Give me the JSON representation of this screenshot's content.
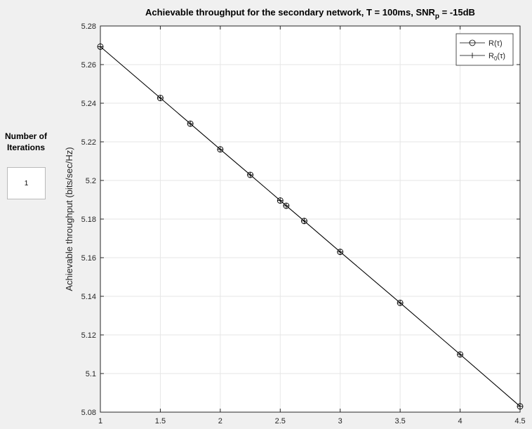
{
  "panel": {
    "label_line1": "Number of",
    "label_line2": "Iterations",
    "value": "1"
  },
  "chart_data": {
    "type": "line",
    "title": "Achievable throughput for the secondary network, T = 100ms, SNR",
    "title_sub": "p",
    "title_suffix": " = -15dB",
    "xlabel": "",
    "ylabel": "Achievable throughput (bits/sec/Hz)",
    "xlim": [
      1,
      4.5
    ],
    "ylim": [
      5.08,
      5.28
    ],
    "xticks": [
      1,
      1.5,
      2,
      2.5,
      3,
      3.5,
      4,
      4.5
    ],
    "xtick_labels": [
      "1",
      "1.5",
      "2",
      "2.5",
      "3",
      "3.5",
      "4",
      "4.5"
    ],
    "yticks": [
      5.08,
      5.1,
      5.12,
      5.14,
      5.16,
      5.18,
      5.2,
      5.22,
      5.24,
      5.26,
      5.28
    ],
    "ytick_labels": [
      "5.08",
      "5.1",
      "5.12",
      "5.14",
      "5.16",
      "5.18",
      "5.2",
      "5.22",
      "5.24",
      "5.26",
      "5.28"
    ],
    "grid": true,
    "legend_position": "top-right",
    "x": [
      1,
      1.5,
      1.75,
      2,
      2.25,
      2.5,
      2.55,
      2.7,
      3,
      3.5,
      4,
      4.5
    ],
    "series": [
      {
        "name": "R(τ)",
        "name_base": "R(τ)",
        "name_sub": "",
        "marker": "circle",
        "color": "#000000",
        "values": [
          5.2693,
          5.2427,
          5.2294,
          5.2161,
          5.2029,
          5.1896,
          5.1869,
          5.179,
          5.163,
          5.1366,
          5.1099,
          5.083
        ]
      },
      {
        "name": "R0(τ)",
        "name_base": "R",
        "name_sub": "0",
        "name_suffix": "(τ)",
        "marker": "plus",
        "color": "#000000",
        "values": [
          5.2693,
          5.2427,
          5.2294,
          5.2161,
          5.2029,
          5.1896,
          5.1869,
          5.179,
          5.163,
          5.1366,
          5.1099,
          5.083
        ]
      }
    ]
  }
}
